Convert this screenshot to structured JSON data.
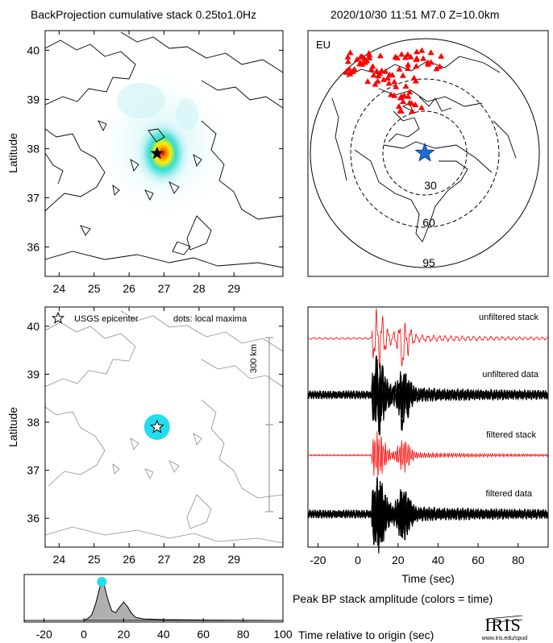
{
  "header": {
    "left_title": "BackProjection cumulative stack 0.25to1.0Hz",
    "right_title": "2020/10/30 11:51   M7.0  Z=10.0km"
  },
  "colors": {
    "stack_line": "#ff0000",
    "data_line": "#000000",
    "epicenter_marker": "#1f6fd0",
    "station_marker": "#ff0000",
    "peak_marker": "#22ddee",
    "histogram_fill": "#b0b0b0",
    "coastline_light": "#808080"
  },
  "chart_data": [
    {
      "type": "heatmap",
      "panel": "cumulative-stack-map",
      "ylabel": "Latitude",
      "xlim": [
        23.6,
        30.4
      ],
      "ylim": [
        35.4,
        40.4
      ],
      "xticks": [
        24,
        25,
        26,
        27,
        28,
        29
      ],
      "yticks": [
        36,
        37,
        38,
        39,
        40
      ],
      "epicenter": {
        "lon": 26.8,
        "lat": 37.9
      }
    },
    {
      "type": "scatter",
      "panel": "station-map",
      "region_label": "EU",
      "ring_labels": [
        "30",
        "60",
        "95"
      ],
      "epicenter": {
        "label": "epicenter"
      }
    },
    {
      "type": "scatter",
      "panel": "local-maxima-map",
      "ylabel": "Latitude",
      "legend_epicenter": "USGS epicenter",
      "legend_dots": "dots: local maxima",
      "scale_label": "300 km",
      "xlim": [
        23.6,
        30.4
      ],
      "ylim": [
        35.4,
        40.4
      ],
      "xticks": [
        24,
        25,
        26,
        27,
        28,
        29
      ],
      "yticks": [
        36,
        37,
        38,
        39,
        40
      ],
      "maxima": [
        {
          "lon": 26.8,
          "lat": 37.9
        }
      ]
    },
    {
      "type": "line",
      "panel": "seismograms",
      "xlabel": "Time (sec)",
      "xlim": [
        -25,
        95
      ],
      "xticks": [
        -20,
        0,
        20,
        40,
        60,
        80
      ],
      "traces": [
        {
          "label": "unfiltered stack"
        },
        {
          "label": "unfiltered data"
        },
        {
          "label": "filtered stack"
        },
        {
          "label": "filtered data"
        }
      ]
    },
    {
      "type": "area",
      "panel": "peak-amplitude",
      "title": "Peak BP stack amplitude (colors = time)",
      "xlabel": "Time relative to origin (sec)",
      "xlim": [
        -30,
        100
      ],
      "xticks": [
        -20,
        0,
        20,
        40,
        60,
        80,
        100
      ],
      "x": [
        -30,
        0,
        2,
        4,
        6,
        8,
        9,
        10,
        12,
        14,
        16,
        18,
        20,
        22,
        24,
        26,
        30,
        40,
        60,
        100
      ],
      "y": [
        0,
        0,
        0.05,
        0.15,
        0.45,
        0.85,
        1.0,
        0.95,
        0.55,
        0.25,
        0.2,
        0.35,
        0.48,
        0.35,
        0.18,
        0.08,
        0.04,
        0.02,
        0.01,
        0
      ],
      "peak": {
        "x": 9,
        "y": 1.0
      }
    }
  ],
  "logo": {
    "text": "IRIS",
    "url_text": "www.iris.edu/spud"
  }
}
